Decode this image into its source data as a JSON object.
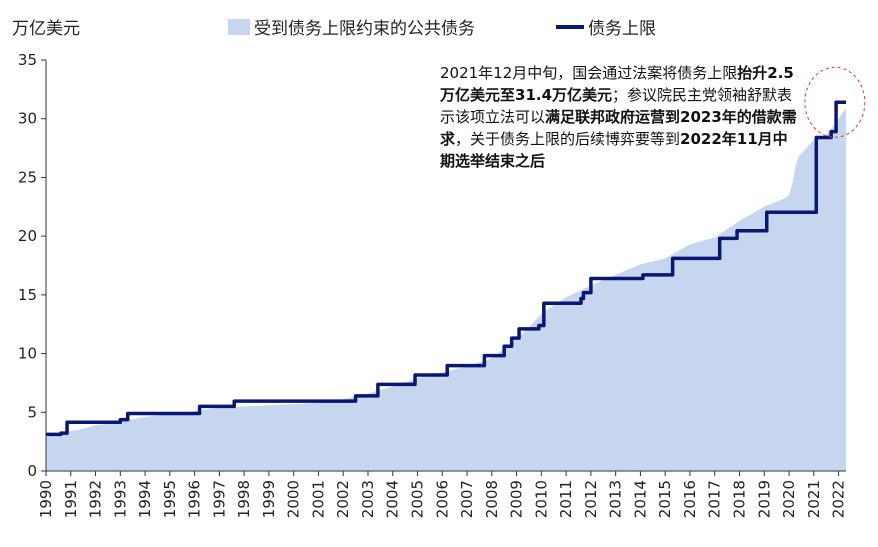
{
  "chart_data": {
    "type": "area",
    "ylabel": "万亿美元",
    "ylim": [
      0,
      35
    ],
    "yticks": [
      0,
      5,
      10,
      15,
      20,
      25,
      30,
      35
    ],
    "xlim": [
      1990,
      2022.3
    ],
    "xticks": [
      "1990",
      "1991",
      "1992",
      "1993",
      "1994",
      "1995",
      "1996",
      "1997",
      "1998",
      "1999",
      "2000",
      "2001",
      "2002",
      "2003",
      "2004",
      "2005",
      "2006",
      "2007",
      "2008",
      "2009",
      "2010",
      "2011",
      "2012",
      "2013",
      "2014",
      "2015",
      "2016",
      "2017",
      "2018",
      "2019",
      "2020",
      "2021",
      "2022"
    ],
    "legend_position": "top-center",
    "grid": false,
    "series": [
      {
        "name": "受到债务上限约束的公共债务",
        "kind": "area",
        "color": "#c6d6ee",
        "points": [
          [
            1990.0,
            2.9
          ],
          [
            1990.5,
            3.1
          ],
          [
            1991.0,
            3.4
          ],
          [
            1991.5,
            3.6
          ],
          [
            1992.0,
            3.9
          ],
          [
            1992.5,
            4.0
          ],
          [
            1993.0,
            4.2
          ],
          [
            1993.5,
            4.4
          ],
          [
            1994.0,
            4.6
          ],
          [
            1995.0,
            4.9
          ],
          [
            1996.0,
            5.1
          ],
          [
            1997.0,
            5.4
          ],
          [
            1998.0,
            5.5
          ],
          [
            1999.0,
            5.6
          ],
          [
            2000.0,
            5.7
          ],
          [
            2001.0,
            5.8
          ],
          [
            2002.0,
            6.1
          ],
          [
            2003.0,
            6.6
          ],
          [
            2004.0,
            7.2
          ],
          [
            2005.0,
            7.9
          ],
          [
            2006.0,
            8.4
          ],
          [
            2007.0,
            8.9
          ],
          [
            2008.0,
            9.6
          ],
          [
            2008.8,
            10.9
          ],
          [
            2009.5,
            12.2
          ],
          [
            2010.0,
            13.4
          ],
          [
            2011.0,
            14.8
          ],
          [
            2012.0,
            15.8
          ],
          [
            2013.0,
            16.7
          ],
          [
            2014.0,
            17.6
          ],
          [
            2015.0,
            18.1
          ],
          [
            2016.0,
            19.3
          ],
          [
            2017.0,
            19.9
          ],
          [
            2018.0,
            21.3
          ],
          [
            2019.0,
            22.5
          ],
          [
            2019.8,
            23.2
          ],
          [
            2020.0,
            23.5
          ],
          [
            2020.15,
            24.6
          ],
          [
            2020.25,
            25.9
          ],
          [
            2020.4,
            26.8
          ],
          [
            2021.0,
            28.2
          ],
          [
            2021.5,
            28.6
          ],
          [
            2021.9,
            29.7
          ],
          [
            2022.3,
            30.9
          ]
        ]
      },
      {
        "name": "债务上限",
        "kind": "line",
        "color": "#0a1772",
        "points": [
          [
            1990.0,
            3.12
          ],
          [
            1990.6,
            3.12
          ],
          [
            1990.6,
            3.23
          ],
          [
            1990.85,
            3.23
          ],
          [
            1990.85,
            4.15
          ],
          [
            1993.0,
            4.15
          ],
          [
            1993.0,
            4.37
          ],
          [
            1993.3,
            4.37
          ],
          [
            1993.3,
            4.9
          ],
          [
            1996.2,
            4.9
          ],
          [
            1996.2,
            5.5
          ],
          [
            1997.6,
            5.5
          ],
          [
            1997.6,
            5.95
          ],
          [
            2002.5,
            5.95
          ],
          [
            2002.5,
            6.4
          ],
          [
            2003.4,
            6.4
          ],
          [
            2003.4,
            7.38
          ],
          [
            2004.9,
            7.38
          ],
          [
            2004.9,
            8.18
          ],
          [
            2006.2,
            8.18
          ],
          [
            2006.2,
            8.97
          ],
          [
            2007.7,
            8.97
          ],
          [
            2007.7,
            9.82
          ],
          [
            2008.5,
            9.82
          ],
          [
            2008.5,
            10.62
          ],
          [
            2008.8,
            10.62
          ],
          [
            2008.8,
            11.32
          ],
          [
            2009.1,
            11.32
          ],
          [
            2009.1,
            12.1
          ],
          [
            2009.9,
            12.1
          ],
          [
            2009.9,
            12.39
          ],
          [
            2010.1,
            12.39
          ],
          [
            2010.1,
            14.29
          ],
          [
            2011.6,
            14.29
          ],
          [
            2011.6,
            14.69
          ],
          [
            2011.7,
            14.69
          ],
          [
            2011.7,
            15.19
          ],
          [
            2012.0,
            15.19
          ],
          [
            2012.0,
            16.39
          ],
          [
            2014.1,
            16.39
          ],
          [
            2014.1,
            16.7
          ],
          [
            2015.3,
            16.7
          ],
          [
            2015.3,
            18.11
          ],
          [
            2017.2,
            18.11
          ],
          [
            2017.2,
            19.81
          ],
          [
            2017.9,
            19.81
          ],
          [
            2017.9,
            20.46
          ],
          [
            2019.1,
            20.46
          ],
          [
            2019.1,
            22.03
          ],
          [
            2021.1,
            22.03
          ],
          [
            2021.1,
            28.4
          ],
          [
            2021.7,
            28.4
          ],
          [
            2021.7,
            28.9
          ],
          [
            2021.9,
            28.9
          ],
          [
            2021.9,
            31.4
          ],
          [
            2022.3,
            31.4
          ]
        ]
      }
    ],
    "annotation": {
      "segments": [
        {
          "text": "2021年12月中旬，国会通过法案将债务上限",
          "bold": false
        },
        {
          "text": "抬升2.5万亿美元至31.4万亿美元",
          "bold": true
        },
        {
          "text": "；参议院民主党领袖舒默表示该项立法可以",
          "bold": false
        },
        {
          "text": "满足联邦政府运营到2023年的借款需求",
          "bold": true
        },
        {
          "text": "，关于债务上限的后续博弈要等到",
          "bold": false
        },
        {
          "text": "2022年11月中期选举结束之后",
          "bold": true
        }
      ],
      "highlight_color": "#e0303a"
    }
  }
}
